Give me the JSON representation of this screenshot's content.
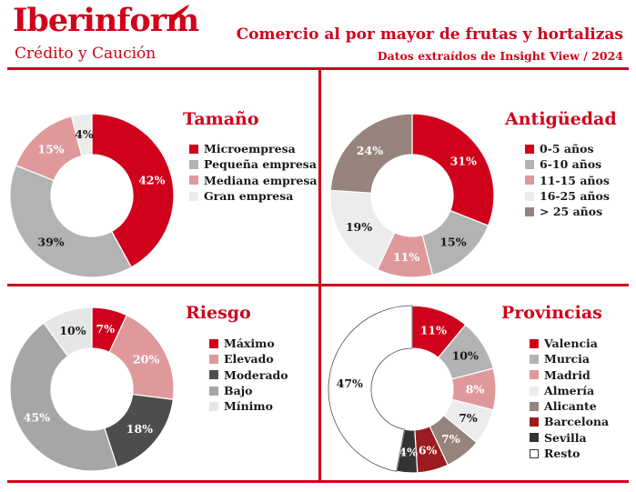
{
  "brand": {
    "name": "Iberinform",
    "tagline": "Crédito y Caución"
  },
  "header": {
    "title": "Comercio al por mayor de frutas y hortalizas",
    "subtitle": "Datos extraídos de Insight View / 2024"
  },
  "colors": {
    "accent": "#d0021b"
  },
  "chart_data": [
    {
      "type": "pie",
      "title": "Tamaño",
      "categories": [
        "Microempresa",
        "Pequeña empresa",
        "Mediana empresa",
        "Gran empresa"
      ],
      "values": [
        42,
        39,
        15,
        4
      ],
      "labels": [
        "42%",
        "39%",
        "15%",
        "4%"
      ],
      "colors": [
        "#d0021b",
        "#b3b3b3",
        "#e0999b",
        "#ececec"
      ],
      "label_colors": [
        "#ffffff",
        "#1a1a1a",
        "#ffffff",
        "#1a1a1a"
      ],
      "start_angle": 0
    },
    {
      "type": "pie",
      "title": "Antigüedad",
      "categories": [
        "0-5 años",
        "6-10 años",
        "11-15 años",
        "16-25 años",
        "> 25 años"
      ],
      "values": [
        31,
        15,
        11,
        19,
        24
      ],
      "labels": [
        "31%",
        "15%",
        "11%",
        "19%",
        "24%"
      ],
      "colors": [
        "#d0021b",
        "#b3b3b3",
        "#e0999b",
        "#ececec",
        "#96847c"
      ],
      "label_colors": [
        "#ffffff",
        "#1a1a1a",
        "#ffffff",
        "#1a1a1a",
        "#ffffff"
      ],
      "start_angle": 0
    },
    {
      "type": "pie",
      "title": "Riesgo",
      "categories": [
        "Máximo",
        "Elevado",
        "Moderado",
        "Bajo",
        "Mínimo"
      ],
      "values": [
        7,
        20,
        18,
        45,
        10
      ],
      "labels": [
        "7%",
        "20%",
        "18%",
        "45%",
        "10%"
      ],
      "colors": [
        "#d0021b",
        "#e0999b",
        "#4d4d4d",
        "#a6a6a6",
        "#e6e6e6"
      ],
      "label_colors": [
        "#ffffff",
        "#ffffff",
        "#ffffff",
        "#ffffff",
        "#1a1a1a"
      ],
      "start_angle": 0
    },
    {
      "type": "pie",
      "title": "Provincias",
      "categories": [
        "Valencia",
        "Murcia",
        "Madrid",
        "Almería",
        "Alicante",
        "Barcelona",
        "Sevilla",
        "Resto"
      ],
      "values": [
        11,
        10,
        8,
        7,
        7,
        6,
        4,
        47
      ],
      "labels": [
        "11%",
        "10%",
        "8%",
        "7%",
        "7%",
        "6%",
        "4%",
        "47%"
      ],
      "colors": [
        "#d0021b",
        "#b3b3b3",
        "#e0999b",
        "#ececec",
        "#96847c",
        "#9b1b1e",
        "#333333",
        "#ffffff"
      ],
      "label_colors": [
        "#ffffff",
        "#1a1a1a",
        "#ffffff",
        "#1a1a1a",
        "#ffffff",
        "#ffffff",
        "#ffffff",
        "#1a1a1a"
      ],
      "start_angle": 0
    }
  ]
}
